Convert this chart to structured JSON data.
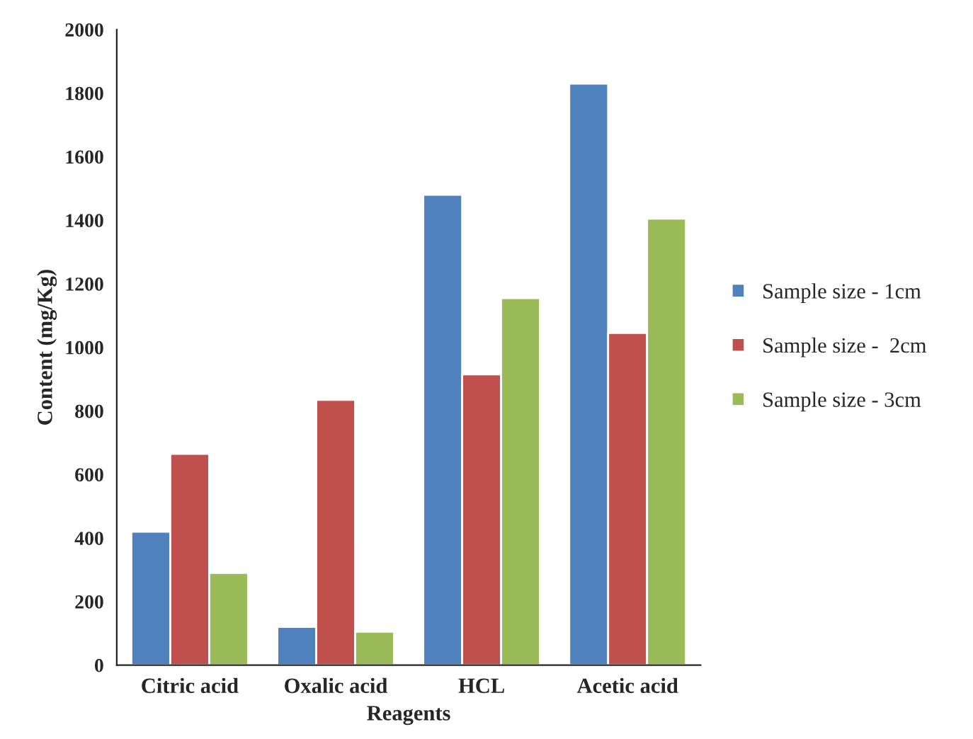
{
  "chart_data": {
    "type": "bar",
    "xlabel": "Reagents",
    "ylabel": "Content (mg/Kg)",
    "categories": [
      "Citric acid",
      "Oxalic acid",
      "HCL",
      "Acetic acid"
    ],
    "series": [
      {
        "name": "Sample size - 1cm",
        "color": "#4f81bd",
        "values": [
          420,
          120,
          1480,
          1830
        ]
      },
      {
        "name": "Sample size -  2cm",
        "color": "#c0504d",
        "values": [
          665,
          835,
          915,
          1045
        ]
      },
      {
        "name": "Sample size - 3cm",
        "color": "#9bbb59",
        "values": [
          290,
          105,
          1155,
          1405
        ]
      }
    ],
    "ylim": [
      0,
      2000
    ],
    "yticks": [
      0,
      200,
      400,
      600,
      800,
      1000,
      1200,
      1400,
      1600,
      1800,
      2000
    ],
    "grid": false,
    "legend": "right"
  }
}
